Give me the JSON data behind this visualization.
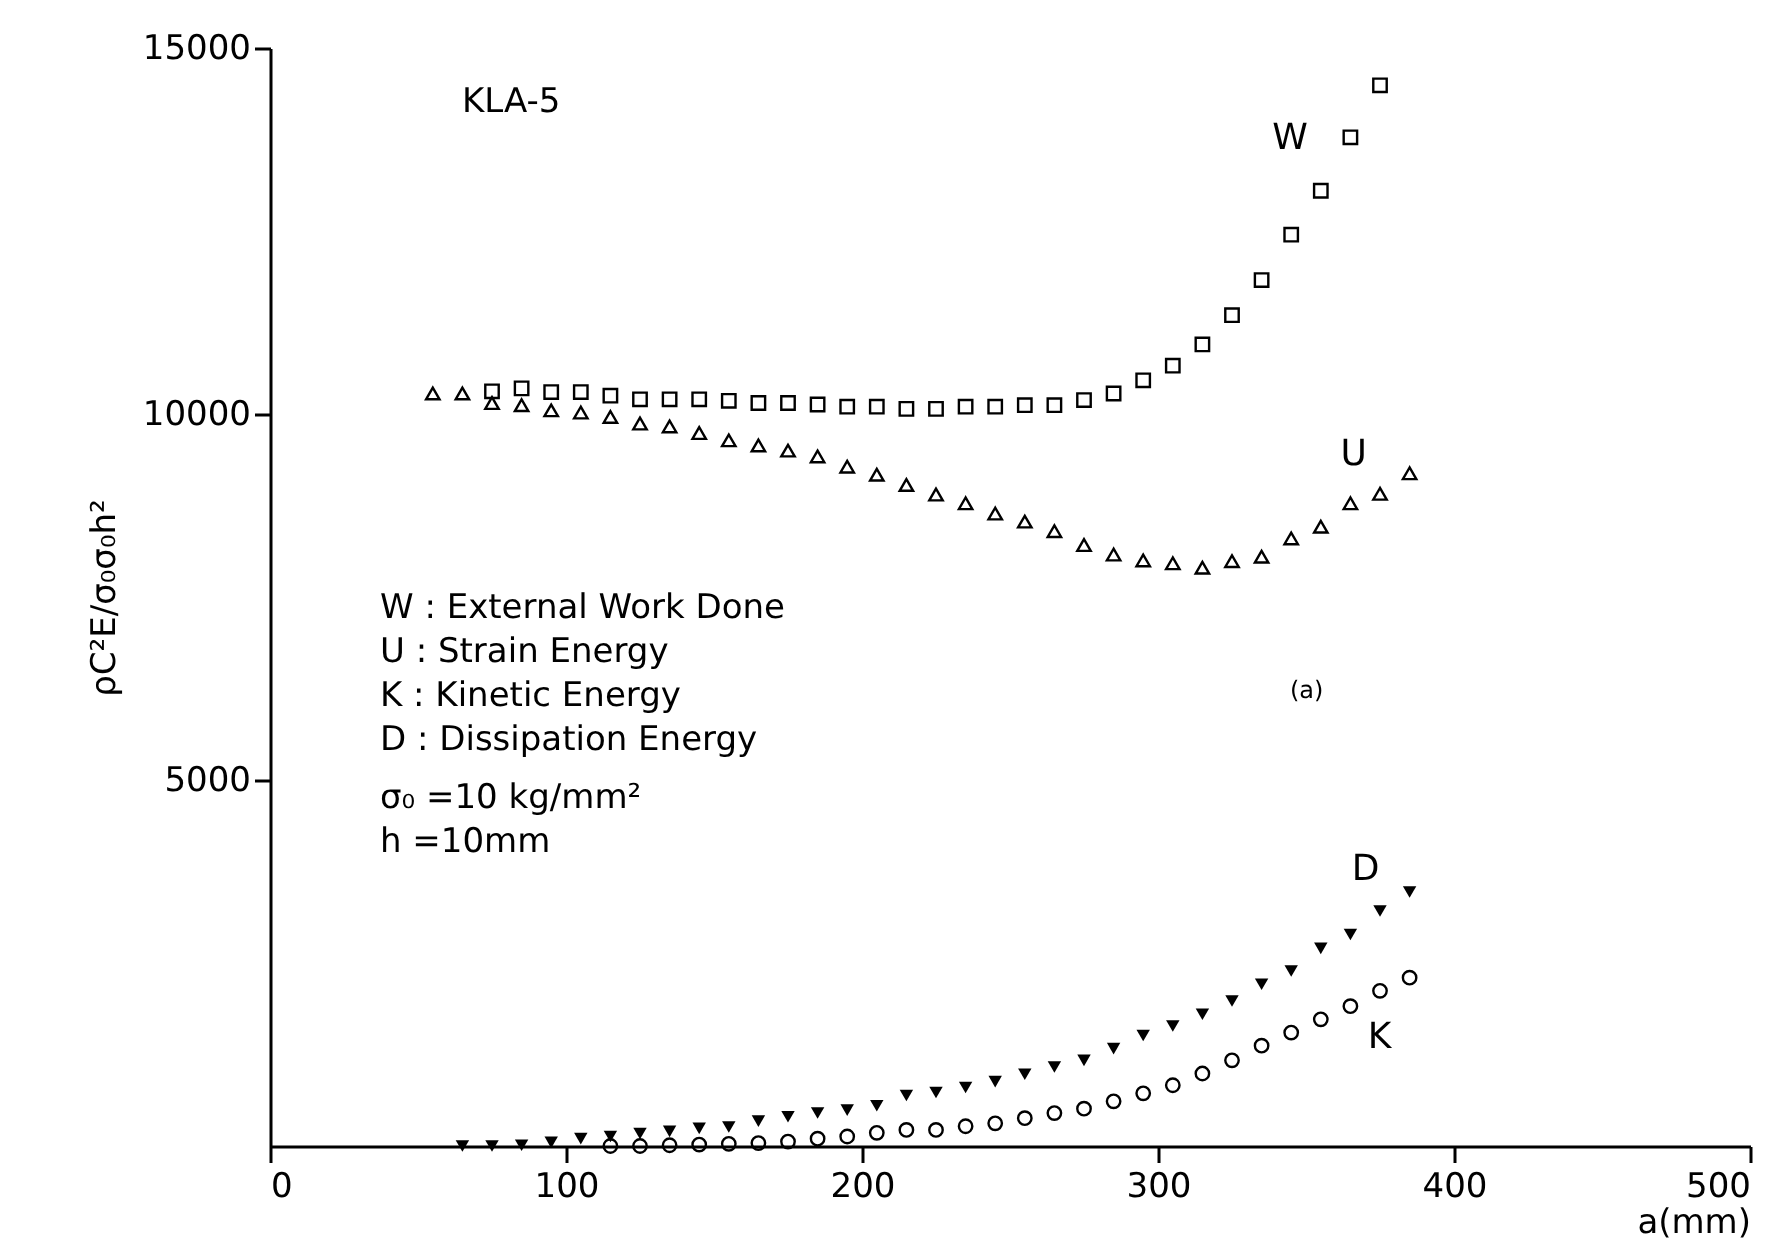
{
  "chart_data": {
    "type": "scatter",
    "xlabel": "a(mm)",
    "ylabel": "ρC²E/σ₀σ₀h²",
    "xlim": [
      0,
      500
    ],
    "xticks": [
      0,
      100,
      200,
      300,
      400,
      500
    ],
    "ylim": [
      0,
      15000
    ],
    "yticks": [
      5000,
      10000,
      15000
    ],
    "grid": false,
    "annotations": [
      "KLA-5",
      "W : External Work Done",
      "U : Strain Energy",
      "K : Kinetic Energy",
      "D : Dissipation Energy",
      "σ₀ =10 kg/mm²",
      "h =10mm",
      "(a)"
    ],
    "series": [
      {
        "name": "W",
        "color": "#000000",
        "marker": "square",
        "x": [
          75,
          85,
          95,
          105,
          115,
          125,
          135,
          145,
          155,
          165,
          175,
          185,
          195,
          205,
          215,
          225,
          235,
          245,
          255,
          265,
          275,
          285,
          295,
          305,
          315,
          325,
          335,
          345,
          355,
          365,
          375
        ],
        "values": [
          10310,
          10350,
          10300,
          10300,
          10250,
          10200,
          10200,
          10200,
          10180,
          10150,
          10150,
          10130,
          10100,
          10100,
          10070,
          10070,
          10100,
          10100,
          10120,
          10120,
          10190,
          10280,
          10460,
          10660,
          10950,
          11350,
          11830,
          12450,
          13050,
          13780,
          14490
        ]
      },
      {
        "name": "U",
        "color": "#000000",
        "marker": "triangle",
        "x": [
          55,
          65,
          75,
          85,
          95,
          105,
          115,
          125,
          135,
          145,
          155,
          165,
          175,
          185,
          195,
          205,
          215,
          225,
          235,
          245,
          255,
          265,
          275,
          285,
          295,
          305,
          315,
          325,
          335,
          345,
          355,
          365,
          375,
          385
        ],
        "values": [
          10280,
          10280,
          10150,
          10120,
          10050,
          10020,
          9960,
          9870,
          9830,
          9740,
          9640,
          9570,
          9500,
          9420,
          9280,
          9170,
          9030,
          8900,
          8780,
          8640,
          8530,
          8400,
          8210,
          8080,
          8000,
          7960,
          7900,
          7990,
          8050,
          8300,
          8460,
          8780,
          8910,
          9190
        ]
      },
      {
        "name": "K",
        "color": "#000000",
        "marker": "circle",
        "x": [
          115,
          125,
          135,
          145,
          155,
          165,
          175,
          185,
          195,
          205,
          215,
          225,
          235,
          245,
          255,
          265,
          275,
          285,
          295,
          305,
          315,
          325,
          335,
          345,
          355,
          365,
          375,
          385
        ],
        "values": [
          0,
          0,
          10,
          20,
          30,
          40,
          60,
          100,
          130,
          180,
          220,
          220,
          270,
          310,
          380,
          450,
          510,
          610,
          720,
          830,
          990,
          1170,
          1370,
          1550,
          1730,
          1910,
          2120,
          2300
        ]
      },
      {
        "name": "D",
        "color": "#000000",
        "marker": "triangle-down",
        "x": [
          65,
          75,
          85,
          95,
          105,
          115,
          125,
          135,
          145,
          155,
          165,
          175,
          185,
          195,
          205,
          215,
          225,
          235,
          245,
          255,
          265,
          275,
          285,
          295,
          305,
          315,
          325,
          335,
          345,
          355,
          365,
          375,
          385
        ],
        "values": [
          0,
          0,
          10,
          50,
          100,
          130,
          170,
          200,
          240,
          260,
          340,
          400,
          450,
          490,
          550,
          690,
          730,
          800,
          880,
          980,
          1080,
          1170,
          1330,
          1510,
          1640,
          1800,
          1980,
          2210,
          2390,
          2700,
          2890,
          3210,
          3470
        ]
      }
    ]
  }
}
